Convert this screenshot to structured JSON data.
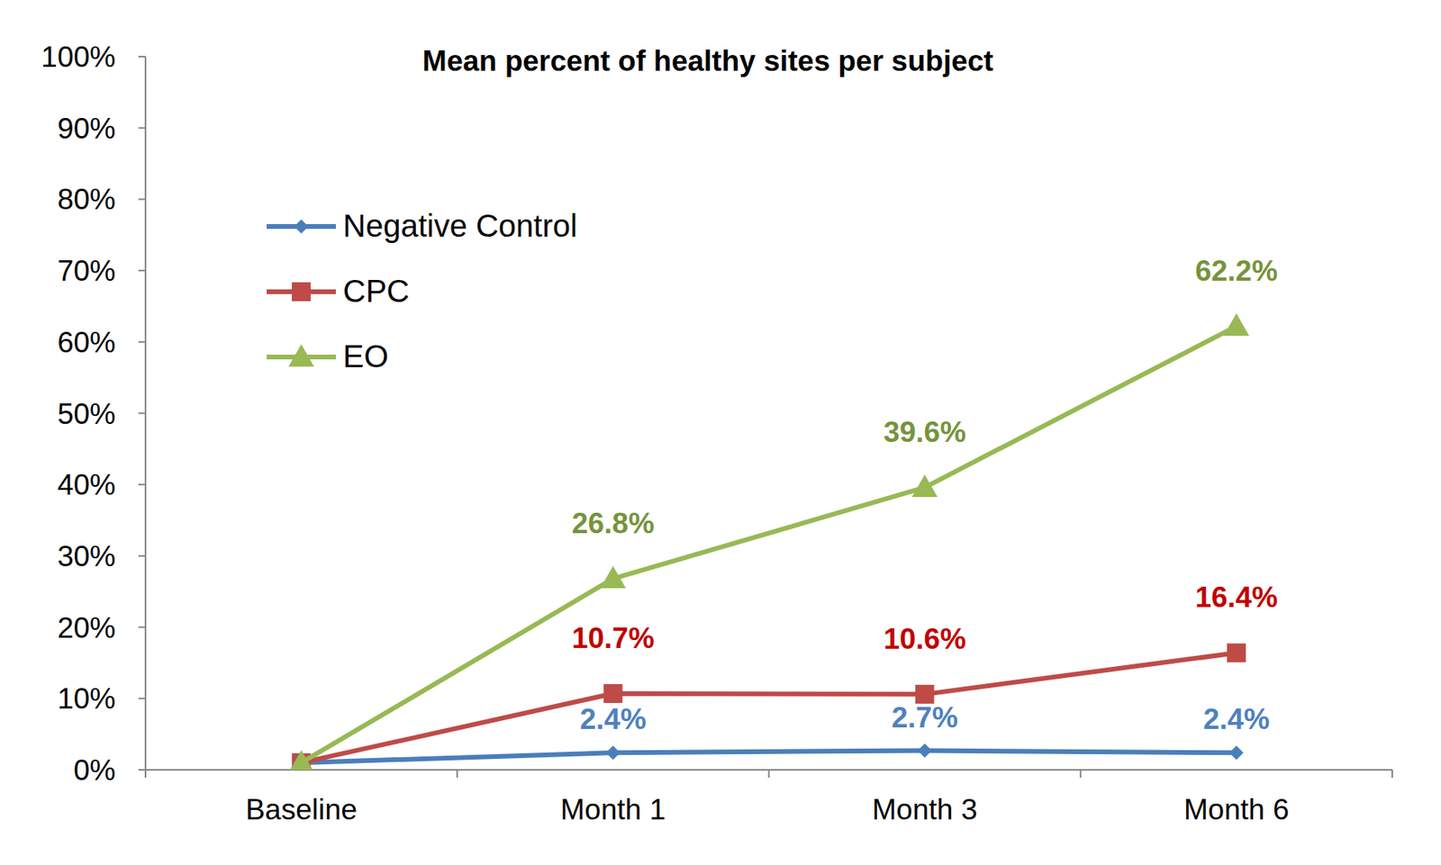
{
  "chart_data": {
    "type": "line",
    "title": "Mean percent of healthy sites per subject",
    "categories": [
      "Baseline",
      "Month 1",
      "Month 3",
      "Month 6"
    ],
    "series": [
      {
        "name": "Negative Control",
        "color": "#4a7ebb",
        "marker": "diamond",
        "values": [
          1.0,
          2.4,
          2.7,
          2.4
        ],
        "value_labels": [
          null,
          "2.4%",
          "2.7%",
          "2.4%"
        ]
      },
      {
        "name": "CPC",
        "color": "#be4b48",
        "marker": "square",
        "values": [
          1.0,
          10.7,
          10.6,
          16.4
        ],
        "value_labels": [
          null,
          "10.7%",
          "10.6%",
          "16.4%"
        ]
      },
      {
        "name": "EO",
        "color": "#98b954",
        "marker": "triangle",
        "values": [
          1.0,
          26.8,
          39.6,
          62.2
        ],
        "value_labels": [
          null,
          "26.8%",
          "39.6%",
          "62.2%"
        ]
      }
    ],
    "ylim": [
      0,
      100
    ],
    "yticks": [
      {
        "value": 0,
        "label": "0%"
      },
      {
        "value": 10,
        "label": "10%"
      },
      {
        "value": 20,
        "label": "20%"
      },
      {
        "value": 30,
        "label": "30%"
      },
      {
        "value": 40,
        "label": "40%"
      },
      {
        "value": 50,
        "label": "50%"
      },
      {
        "value": 60,
        "label": "60%"
      },
      {
        "value": 70,
        "label": "70%"
      },
      {
        "value": 80,
        "label": "80%"
      },
      {
        "value": 90,
        "label": "90%"
      },
      {
        "value": 100,
        "label": "100%"
      }
    ],
    "grid": false,
    "legend": "upper left",
    "data_labels": true
  }
}
